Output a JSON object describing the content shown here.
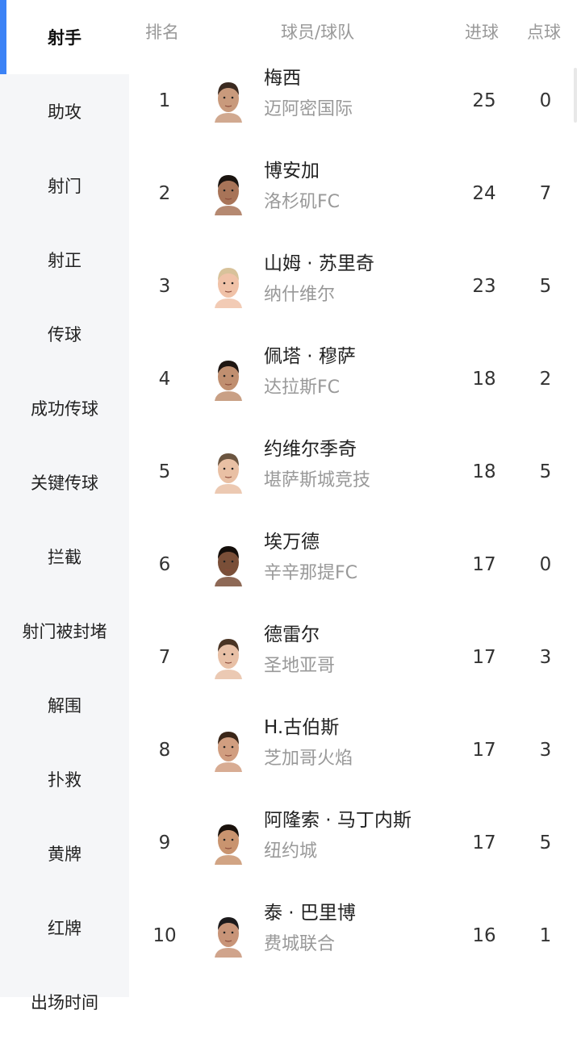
{
  "sidebar": {
    "items": [
      {
        "label": "射手",
        "active": true
      },
      {
        "label": "助攻"
      },
      {
        "label": "射门"
      },
      {
        "label": "射正"
      },
      {
        "label": "传球"
      },
      {
        "label": "成功传球"
      },
      {
        "label": "关键传球"
      },
      {
        "label": "拦截"
      },
      {
        "label": "射门被封堵"
      },
      {
        "label": "解围"
      },
      {
        "label": "扑救"
      },
      {
        "label": "黄牌"
      },
      {
        "label": "红牌"
      },
      {
        "label": "出场时间"
      }
    ],
    "accent_color": "#3b82f6"
  },
  "table": {
    "headers": {
      "rank": "排名",
      "player": "球员/球队",
      "goals": "进球",
      "penalties": "点球"
    },
    "rows": [
      {
        "rank": "1",
        "name": "梅西",
        "team": "迈阿密国际",
        "goals": "25",
        "penalties": "0",
        "skin": "#c99a7c",
        "hair": "#3a2a20"
      },
      {
        "rank": "2",
        "name": "博安加",
        "team": "洛杉矶FC",
        "goals": "24",
        "penalties": "7",
        "skin": "#a87458",
        "hair": "#1a1410"
      },
      {
        "rank": "3",
        "name": "山姆 · 苏里奇",
        "team": "纳什维尔",
        "goals": "23",
        "penalties": "5",
        "skin": "#f0c2a8",
        "hair": "#d8c29a"
      },
      {
        "rank": "4",
        "name": "佩塔 · 穆萨",
        "team": "达拉斯FC",
        "goals": "18",
        "penalties": "2",
        "skin": "#c08f70",
        "hair": "#1e1612"
      },
      {
        "rank": "5",
        "name": "约维尔季奇",
        "team": "堪萨斯城竞技",
        "goals": "18",
        "penalties": "5",
        "skin": "#e9c0a4",
        "hair": "#6b5540"
      },
      {
        "rank": "6",
        "name": "埃万德",
        "team": "辛辛那提FC",
        "goals": "17",
        "penalties": "0",
        "skin": "#7a4f38",
        "hair": "#140e0a"
      },
      {
        "rank": "7",
        "name": "德雷尔",
        "team": "圣地亚哥",
        "goals": "17",
        "penalties": "3",
        "skin": "#e8c0a6",
        "hair": "#4a3424"
      },
      {
        "rank": "8",
        "name": "H.古伯斯",
        "team": "芝加哥火焰",
        "goals": "17",
        "penalties": "3",
        "skin": "#d19e80",
        "hair": "#3a2618"
      },
      {
        "rank": "9",
        "name": "阿隆索 · 马丁内斯",
        "team": "纽约城",
        "goals": "17",
        "penalties": "5",
        "skin": "#c9946f",
        "hair": "#1a120c"
      },
      {
        "rank": "10",
        "name": "泰 · 巴里博",
        "team": "费城联合",
        "goals": "16",
        "penalties": "1",
        "skin": "#c89478",
        "hair": "#1c1a1c"
      }
    ]
  }
}
